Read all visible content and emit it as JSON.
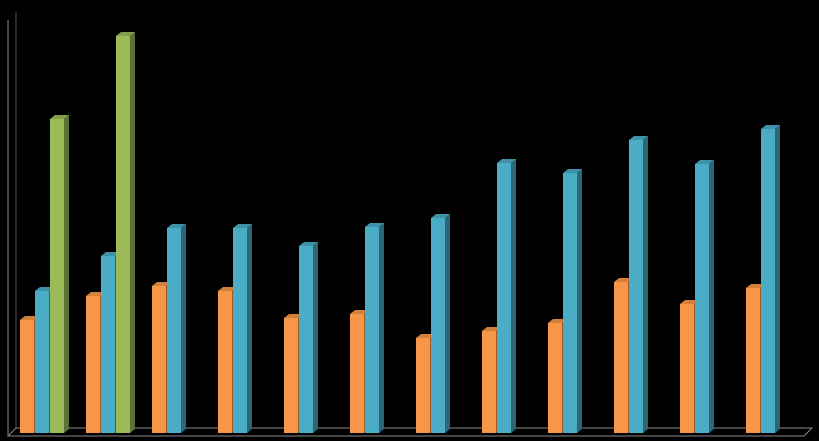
{
  "chart_data": {
    "type": "bar",
    "categories": [
      null,
      null,
      null,
      null,
      null,
      null,
      null,
      null,
      null,
      null,
      null,
      null
    ],
    "series": [
      {
        "color": "#f79646",
        "values": [
          113,
          137,
          147,
          142,
          115,
          119,
          95,
          102,
          110,
          151,
          129,
          145
        ]
      },
      {
        "color": "#4bacc6",
        "values": [
          142,
          177,
          205,
          205,
          187,
          206,
          215,
          270,
          260,
          293,
          269,
          304
        ]
      },
      {
        "color": "#9bbb59",
        "values": [
          314,
          397,
          null,
          null,
          null,
          null,
          null,
          null,
          null,
          null,
          null,
          null
        ]
      }
    ],
    "ylim": [
      0,
      420
    ]
  }
}
